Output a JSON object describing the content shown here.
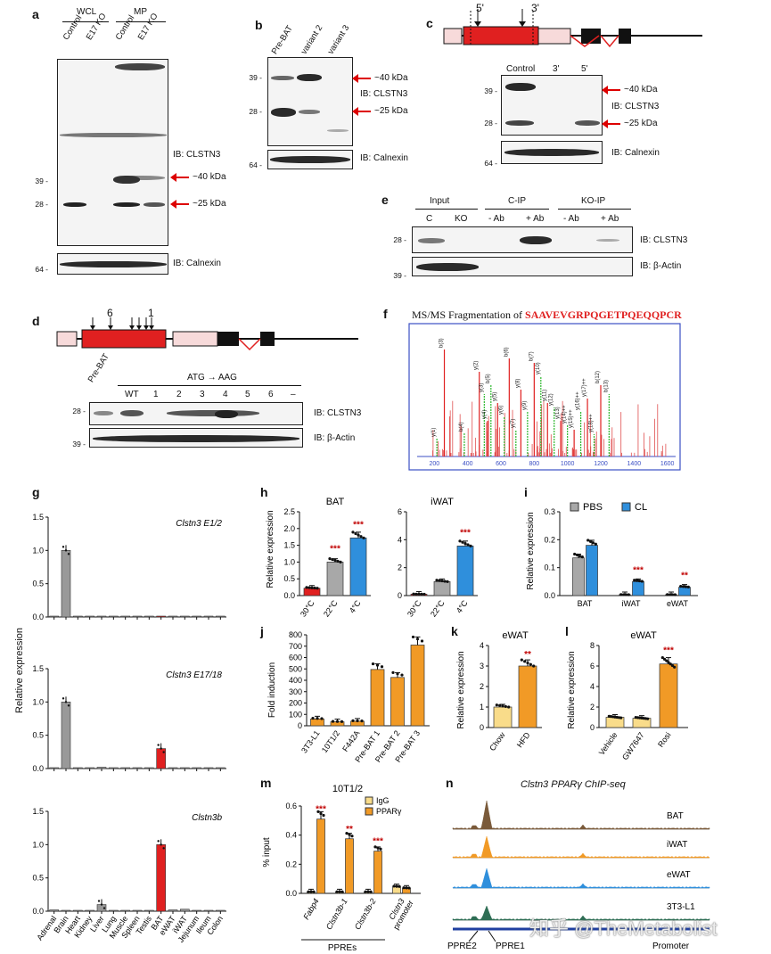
{
  "panel_letters": {
    "a": "a",
    "b": "b",
    "c": "c",
    "d": "d",
    "e": "e",
    "f": "f",
    "g": "g",
    "h": "h",
    "i": "i",
    "j": "j",
    "k": "k",
    "l": "l",
    "m": "m",
    "n": "n"
  },
  "colors": {
    "red": "#e02020",
    "pink": "#f7dada",
    "grey": "#a8a8a8",
    "blue": "#2f8fdc",
    "orange": "#f19a26",
    "yellow": "#f9dc8a",
    "sig": "#c00000"
  },
  "blot_a": {
    "header_wcl": "WCL",
    "header_mp": "MP",
    "lanes": [
      "Control",
      "E17 KO",
      "Control",
      "E17 KO"
    ],
    "mw": [
      "39 -",
      "28 -",
      "64 -"
    ],
    "ib_main": "IB: CLSTN3",
    "ib_load": "IB: Calnexin",
    "arrow1": "~40 kDa",
    "arrow2": "~25 kDa"
  },
  "blot_b": {
    "lanes": [
      "Pre-BAT",
      "variant 2",
      "variant 3"
    ],
    "mw": [
      "39 -",
      "28 -",
      "64 -"
    ],
    "ib_main": "IB: CLSTN3",
    "ib_load": "IB: Calnexin",
    "arrow1": "~40 kDa",
    "arrow2": "~25 kDa"
  },
  "blot_c": {
    "site5": "5'",
    "site3": "3'",
    "lanes": [
      "Control",
      "3'",
      "5'"
    ],
    "mw": [
      "39 -",
      "28 -",
      "64 -"
    ],
    "ib_main": "IB: CLSTN3",
    "ib_load": "IB: Calnexin",
    "arrow1": "~40 kDa",
    "arrow2": "~25 kDa"
  },
  "blot_e": {
    "groups": [
      "Input",
      "C-IP",
      "KO-IP"
    ],
    "lanes": [
      "C",
      "KO",
      "- Ab",
      "+ Ab",
      "- Ab",
      "+ Ab"
    ],
    "mw": [
      "28 -",
      "39 -"
    ],
    "ib_main": "IB: CLSTN3",
    "ib_load": "IB: β-Actin"
  },
  "blot_d": {
    "site6": "6",
    "site1": "1",
    "prebat": "Pre-BAT",
    "mutation": "ATG → AAG",
    "lanes": [
      "WT",
      "1",
      "2",
      "3",
      "4",
      "5",
      "6",
      "–"
    ],
    "mw": [
      "28 -",
      "39 -"
    ],
    "ib_main": "IB: CLSTN3",
    "ib_load": "IB: β-Actin"
  },
  "panel_f": {
    "title_prefix": "MS/MS Fragmentation of ",
    "peptide": "SAAVEVGRPQGETPQEQQPCR",
    "x_ticks": [
      "200",
      "400",
      "600",
      "800",
      "1000",
      "1200",
      "1400",
      "1600"
    ],
    "ions": [
      "y(1)",
      "b(3)",
      "b(4)",
      "y(2)",
      "y(3)",
      "y(4)",
      "b(5)",
      "y(5)",
      "y(6)",
      "b(6)",
      "y(7)",
      "y(8)",
      "y(9)",
      "b(7)",
      "y(10)",
      "y(11)",
      "y(12)",
      "y(13)",
      "y(14)++",
      "y(15)++",
      "y(16)++",
      "y(17)++",
      "y(18)++",
      "b(12)",
      "b(13)"
    ]
  },
  "chart_data": [
    {
      "id": "g1",
      "type": "bar",
      "title": "Clstn3 E1/2",
      "ylabel": "Relative expression",
      "ylim": [
        0,
        1.5
      ],
      "categories": [
        "Adrenal",
        "Brain",
        "Heart",
        "Kidney",
        "Liver",
        "Lung",
        "Muscle",
        "Spleen",
        "Testis",
        "BAT",
        "eWAT",
        "iWAT",
        "Jejunum",
        "Ileum",
        "Colon"
      ],
      "values": [
        0.01,
        1.0,
        0.01,
        0.01,
        0.01,
        0.01,
        0.01,
        0.01,
        0.01,
        0.01,
        0.01,
        0.01,
        0.01,
        0.01,
        0.01
      ],
      "yticks": [
        "0.0",
        "0.5",
        "1.0",
        "1.5"
      ]
    },
    {
      "id": "g2",
      "type": "bar",
      "title": "Clstn3 E17/18",
      "ylim": [
        0,
        1.5
      ],
      "categories": [
        "Adrenal",
        "Brain",
        "Heart",
        "Kidney",
        "Liver",
        "Lung",
        "Muscle",
        "Spleen",
        "Testis",
        "BAT",
        "eWAT",
        "iWAT",
        "Jejunum",
        "Ileum",
        "Colon"
      ],
      "values": [
        0.01,
        1.0,
        0.01,
        0.01,
        0.02,
        0.01,
        0.01,
        0.01,
        0.01,
        0.3,
        0.01,
        0.01,
        0.01,
        0.01,
        0.01
      ],
      "yticks": [
        "0.0",
        "0.5",
        "1.0",
        "1.5"
      ]
    },
    {
      "id": "g3",
      "type": "bar",
      "title": "Clstn3b",
      "ylim": [
        0,
        1.5
      ],
      "categories": [
        "Adrenal",
        "Brain",
        "Heart",
        "Kidney",
        "Liver",
        "Lung",
        "Muscle",
        "Spleen",
        "Testis",
        "BAT",
        "eWAT",
        "iWAT",
        "Jejunum",
        "Ileum",
        "Colon"
      ],
      "values": [
        0.02,
        0.0,
        0.0,
        0.0,
        0.1,
        0.0,
        0.0,
        0.0,
        0.0,
        1.0,
        0.02,
        0.03,
        0.0,
        0.0,
        0.0
      ],
      "yticks": [
        "0.0",
        "0.5",
        "1.0",
        "1.5"
      ]
    },
    {
      "id": "h",
      "type": "bar",
      "ylabel": "Relative expression",
      "ylim": [
        0,
        2.5
      ],
      "yticks": [
        "0.0",
        "0.5",
        "1.0",
        "1.5",
        "2.0",
        "2.5"
      ],
      "subplots": [
        {
          "title": "BAT",
          "categories": [
            "30°C",
            "22°C",
            "4°C"
          ],
          "values": [
            0.22,
            1.0,
            1.72
          ],
          "sig": [
            "",
            "***",
            "***"
          ]
        },
        {
          "title": "iWAT",
          "categories": [
            "30°C",
            "22°C",
            "4°C"
          ],
          "values": [
            0.1,
            1.0,
            3.55
          ],
          "sig": [
            "",
            "",
            "***"
          ],
          "ylim": [
            0,
            6
          ],
          "yticks": [
            "0",
            "2",
            "4",
            "6"
          ]
        }
      ]
    },
    {
      "id": "i",
      "type": "bar",
      "ylabel": "Relative expression",
      "ylim": [
        0,
        0.3
      ],
      "yticks": [
        "0.0",
        "0.1",
        "0.2",
        "0.3"
      ],
      "categories": [
        "BAT",
        "iWAT",
        "eWAT"
      ],
      "series": [
        {
          "name": "PBS",
          "values": [
            0.135,
            0.003,
            0.003
          ]
        },
        {
          "name": "CL",
          "values": [
            0.18,
            0.05,
            0.03
          ]
        }
      ],
      "sig": [
        "",
        "***",
        "**"
      ]
    },
    {
      "id": "j",
      "type": "bar",
      "ylabel": "Fold induction",
      "ylim": [
        0,
        800
      ],
      "yticks": [
        "0",
        "100",
        "200",
        "300",
        "400",
        "500",
        "600",
        "700",
        "800"
      ],
      "categories": [
        "3T3-L1",
        "10T1/2",
        "F442A",
        "Pre-BAT 1",
        "Pre-BAT 2",
        "Pre-BAT 3"
      ],
      "values": [
        60,
        35,
        40,
        495,
        425,
        710
      ]
    },
    {
      "id": "k",
      "type": "bar",
      "title": "eWAT",
      "ylabel": "Relative expression",
      "ylim": [
        0,
        4
      ],
      "yticks": [
        "0",
        "1",
        "2",
        "3",
        "4"
      ],
      "categories": [
        "Chow",
        "HFD"
      ],
      "values": [
        1.0,
        3.0
      ],
      "sig": [
        "",
        "**"
      ]
    },
    {
      "id": "l",
      "type": "bar",
      "title": "eWAT",
      "ylabel": "Relative expression",
      "ylim": [
        0,
        8
      ],
      "yticks": [
        "0",
        "2",
        "4",
        "6",
        "8"
      ],
      "categories": [
        "Vehicle",
        "GW7647",
        "Rosi"
      ],
      "values": [
        1.0,
        0.9,
        6.2
      ],
      "sig": [
        "",
        "",
        "***"
      ]
    },
    {
      "id": "m",
      "type": "bar",
      "title": "10T1/2",
      "ylabel": "% input",
      "ylim": [
        0,
        0.6
      ],
      "yticks": [
        "0.0",
        "0.2",
        "0.4",
        "0.6"
      ],
      "categories": [
        "Fabp4",
        "Clstn3b-1",
        "Clstn3b-2",
        "Clstn3 promoter"
      ],
      "series": [
        {
          "name": "IgG",
          "values": [
            0.01,
            0.01,
            0.01,
            0.045
          ]
        },
        {
          "name": "PPARγ",
          "values": [
            0.51,
            0.375,
            0.29,
            0.035
          ]
        }
      ],
      "sig": [
        "***",
        "**",
        "***",
        ""
      ],
      "group_label": "PPREs"
    }
  ],
  "panel_g_ylabel": "Relative expression",
  "panel_n": {
    "title": "Clstn3 PPARγ ChIP-seq",
    "tracks": [
      "BAT",
      "iWAT",
      "eWAT",
      "3T3-L1"
    ],
    "labels": [
      "PPRE2",
      "PPRE1",
      "Promoter"
    ]
  },
  "watermark": "知乎 @TheMetabolist"
}
